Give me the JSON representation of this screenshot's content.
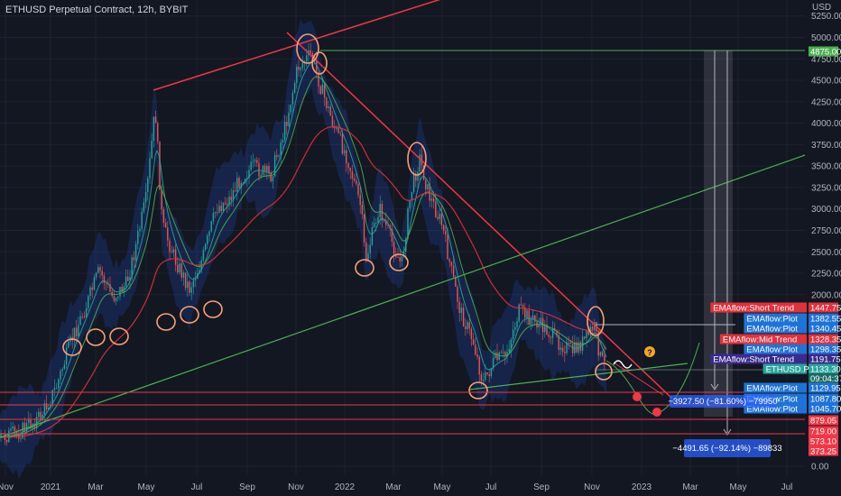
{
  "header": {
    "title": "ETHUSD Perpetual Contract, 12h, BYBIT",
    "currency": "USD"
  },
  "colors": {
    "background": "#131722",
    "candle_up": "#26a69a",
    "candle_down": "#ef5350",
    "trendline_red": "#f23645",
    "trendline_green": "#4caf50",
    "ribbon": "#2962ff",
    "annotation_circle": "#f7a076",
    "ema_blue": "#1e73d8",
    "ema_red": "#e0313b",
    "ema_purple": "#3b2a8c",
    "eth_badge": "#26a69a"
  },
  "chart_data": {
    "type": "line",
    "title": "ETHUSD Perpetual Contract, 12h, BYBIT",
    "ylabel": "USD",
    "ylim": [
      0,
      5500
    ],
    "grid": true,
    "y_ticks": [
      "5250.00",
      "5000.00",
      "4750.00",
      "4500.00",
      "4250.00",
      "4000.00",
      "3750.00",
      "3500.00",
      "3250.00",
      "3000.00",
      "2750.00",
      "2500.00",
      "2250.00",
      "2000.00",
      "0.00"
    ],
    "x_ticks": [
      "Nov",
      "2021",
      "Mar",
      "May",
      "Jul",
      "Sep",
      "Nov",
      "2022",
      "Mar",
      "May",
      "Jul",
      "Sep",
      "Nov",
      "2023",
      "Mar",
      "May",
      "Jul"
    ],
    "series": [
      {
        "name": "ETHUSD",
        "x": [
          "2020-10",
          "2020-11",
          "2020-12",
          "2021-01",
          "2021-02",
          "2021-03",
          "2021-04",
          "2021-05",
          "2021-06",
          "2021-07",
          "2021-08",
          "2021-09",
          "2021-10",
          "2021-11",
          "2021-12",
          "2022-01",
          "2022-02",
          "2022-03",
          "2022-04",
          "2022-05",
          "2022-06",
          "2022-07",
          "2022-08",
          "2022-09",
          "2022-10",
          "2022-11"
        ],
        "values": [
          380,
          480,
          600,
          1300,
          1700,
          1750,
          2400,
          4350,
          2100,
          2050,
          3200,
          3400,
          3800,
          4800,
          4100,
          3600,
          2650,
          2900,
          3200,
          2000,
          1100,
          1600,
          1850,
          1350,
          1300,
          1133
        ]
      }
    ],
    "price_labels": [
      {
        "text": "4875.00",
        "value": 4875,
        "color": "#4caf50"
      },
      {
        "text": "1447.75",
        "value": 1447.75,
        "color": "#e0313b",
        "tag": "EMAflow:Short Trend"
      },
      {
        "text": "1382.55",
        "value": 1382.55,
        "color": "#1e73d8",
        "tag": "EMAflow:Plot"
      },
      {
        "text": "1340.45",
        "value": 1340.45,
        "color": "#1e73d8",
        "tag": "EMAflow:Plot"
      },
      {
        "text": "1328.35",
        "value": 1328.35,
        "color": "#e0313b",
        "tag": "EMAflow:Mid Trend"
      },
      {
        "text": "1298.35",
        "value": 1298.35,
        "color": "#1e73d8",
        "tag": "EMAflow:Plot"
      },
      {
        "text": "1191.75",
        "value": 1191.75,
        "color": "#3b2a8c",
        "tag": "EMAflow:Short Trend"
      },
      {
        "text": "1133.30",
        "value": 1133.3,
        "color": "#26a69a",
        "tag": "ETHUSD.P",
        "sub": "09:04:37"
      },
      {
        "text": "1129.95",
        "value": 1129.95,
        "color": "#1e73d8",
        "tag": "EMAflow:Plot"
      },
      {
        "text": "1087.80",
        "value": 1087.8,
        "color": "#1e73d8",
        "tag": "EMAflow:Plot"
      },
      {
        "text": "1045.70",
        "value": 1045.7,
        "color": "#1e73d8",
        "tag": "EMAflow:Plot"
      },
      {
        "text": "879.05",
        "value": 879.05,
        "color": "#f23645"
      },
      {
        "text": "719.00",
        "value": 719,
        "color": "#f23645"
      },
      {
        "text": "573.10",
        "value": 573.1,
        "color": "#f23645"
      },
      {
        "text": "373.25",
        "value": 373.25,
        "color": "#f23645"
      }
    ],
    "horizontal_levels": [
      1129.95,
      1045.7,
      879.05,
      719.0,
      573.1
    ],
    "annotations": [
      {
        "text": "−3927.50 (−81.60%) −79950"
      },
      {
        "text": "−4491.65 (−92.14%) −89833"
      }
    ]
  }
}
